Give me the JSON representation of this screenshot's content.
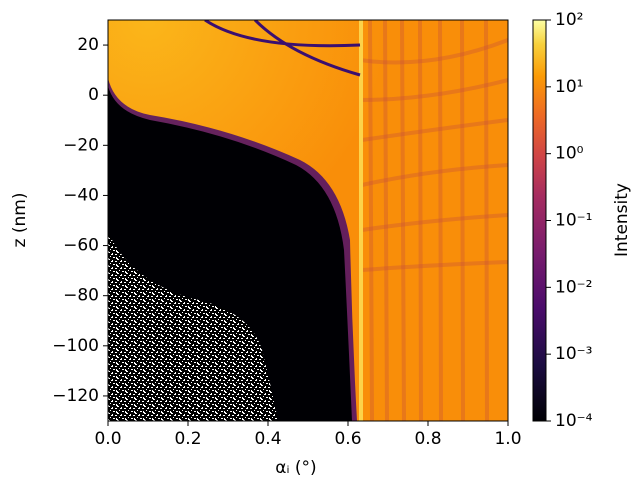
{
  "chart_data": {
    "type": "heatmap",
    "xlabel": "αᵢ (°)",
    "ylabel": "z (nm)",
    "colorbar_label": "Intensity",
    "xlim": [
      0,
      1
    ],
    "ylim": [
      -130,
      30
    ],
    "xticks": [
      {
        "value": 0,
        "label": "0.0"
      },
      0.2,
      0.4,
      0.6,
      0.8,
      {
        "value": 1,
        "label": "1.0"
      }
    ],
    "yticks": [
      {
        "value": 20,
        "label": "20"
      },
      {
        "value": 0,
        "label": "0"
      },
      {
        "value": -20,
        "label": "−20"
      },
      {
        "value": -40,
        "label": "−40"
      },
      {
        "value": -60,
        "label": "−60"
      },
      {
        "value": -80,
        "label": "−80"
      },
      {
        "value": -100,
        "label": "−100"
      },
      {
        "value": -120,
        "label": "−120"
      }
    ],
    "colorbar_scale": "log",
    "clim": [
      0.0001,
      100
    ],
    "colorbar_ticks": [
      {
        "value": 0.0001,
        "label": "10⁻⁴"
      },
      {
        "value": 0.001,
        "label": "10⁻³"
      },
      {
        "value": 0.01,
        "label": "10⁻²"
      },
      {
        "value": 0.1,
        "label": "10⁻¹"
      },
      {
        "value": 1,
        "label": "10⁰"
      },
      {
        "value": 10,
        "label": "10¹"
      },
      {
        "value": 100,
        "label": "10²"
      }
    ],
    "colormap": "inferno"
  }
}
